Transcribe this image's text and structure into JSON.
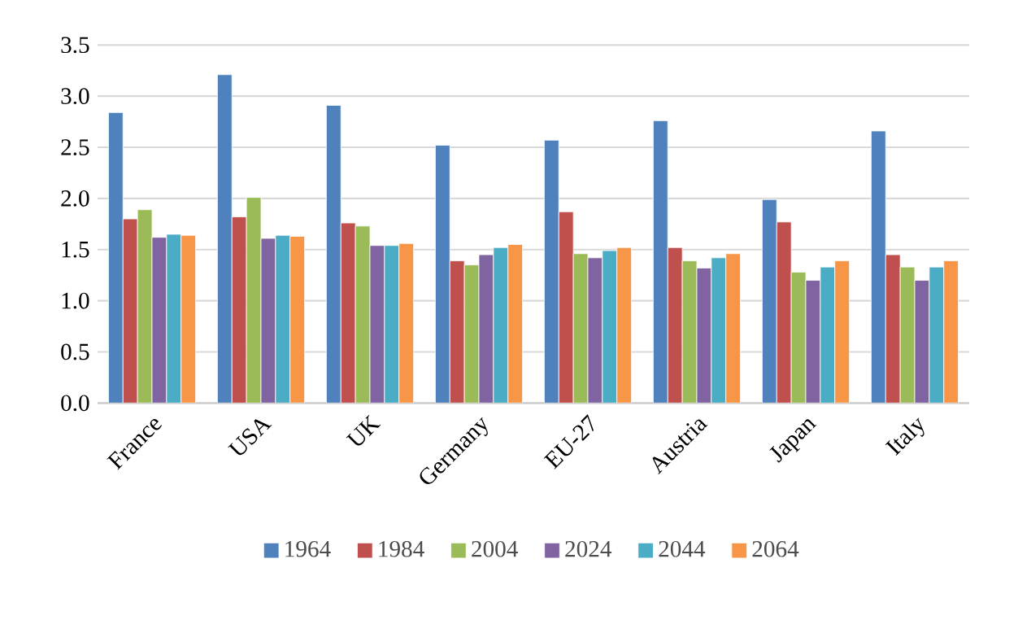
{
  "chart_data": {
    "type": "bar",
    "categories": [
      "France",
      "USA",
      "UK",
      "Germany",
      "EU-27",
      "Austria",
      "Japan",
      "Italy"
    ],
    "series": [
      {
        "name": "1964",
        "color": "#4f81bd",
        "values": [
          2.84,
          3.21,
          2.91,
          2.52,
          2.57,
          2.76,
          1.99,
          2.66
        ]
      },
      {
        "name": "1984",
        "color": "#c0504d",
        "values": [
          1.8,
          1.82,
          1.76,
          1.39,
          1.87,
          1.52,
          1.77,
          1.45
        ]
      },
      {
        "name": "2004",
        "color": "#9bbb59",
        "values": [
          1.89,
          2.01,
          1.73,
          1.35,
          1.46,
          1.39,
          1.28,
          1.33
        ]
      },
      {
        "name": "2024",
        "color": "#8064a2",
        "values": [
          1.62,
          1.61,
          1.54,
          1.45,
          1.42,
          1.32,
          1.2,
          1.2
        ]
      },
      {
        "name": "2044",
        "color": "#4bacc6",
        "values": [
          1.65,
          1.64,
          1.54,
          1.52,
          1.49,
          1.42,
          1.33,
          1.33
        ]
      },
      {
        "name": "2064",
        "color": "#f79646",
        "values": [
          1.64,
          1.63,
          1.56,
          1.55,
          1.52,
          1.46,
          1.39,
          1.39
        ]
      }
    ],
    "ylim": [
      0,
      3.5
    ],
    "yticks": [
      {
        "value": 0,
        "label": "0.0"
      },
      {
        "value": 0.5,
        "label": "0.5"
      },
      {
        "value": 1,
        "label": "1.0"
      },
      {
        "value": 1.5,
        "label": "1.5"
      },
      {
        "value": 2,
        "label": "2.0"
      },
      {
        "value": 2.5,
        "label": "2.5"
      },
      {
        "value": 3,
        "label": "3.0"
      },
      {
        "value": 3.5,
        "label": "3.5"
      }
    ],
    "grid": "y",
    "legend": "bottom"
  }
}
